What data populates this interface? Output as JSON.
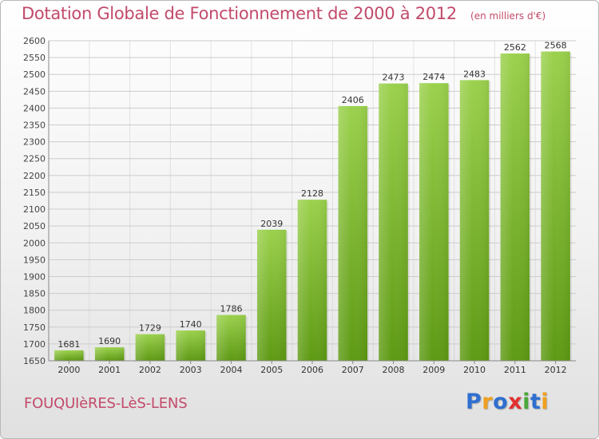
{
  "chart_data": {
    "type": "bar",
    "title": "Dotation Globale de Fonctionnement de 2000 à 2012",
    "subtitle": "(en milliers d'€)",
    "categories": [
      "2000",
      "2001",
      "2002",
      "2003",
      "2004",
      "2005",
      "2006",
      "2007",
      "2008",
      "2009",
      "2010",
      "2011",
      "2012"
    ],
    "values": [
      1681,
      1690,
      1729,
      1740,
      1786,
      2039,
      2128,
      2406,
      2473,
      2474,
      2483,
      2562,
      2568
    ],
    "ylim": [
      1650,
      2600
    ],
    "yticks": [
      1650,
      1700,
      1750,
      1800,
      1850,
      1900,
      1950,
      2000,
      2050,
      2100,
      2150,
      2200,
      2250,
      2300,
      2350,
      2400,
      2450,
      2500,
      2550,
      2600
    ],
    "grid": true,
    "data_labels": true,
    "colors": {
      "bar_top": "#9bd14d",
      "bar_bottom": "#5e9a14",
      "grid": "#cccccc",
      "accent": "#c24a6a"
    }
  },
  "footer": {
    "commune": "FOUQUIèRES-LèS-LENS",
    "logo_letters": [
      "P",
      "r",
      "o",
      "x",
      "i",
      "t",
      "i"
    ],
    "logo_colors": [
      "#2f6fd0",
      "#f0a020",
      "#2f6fd0",
      "#e23030",
      "#4aa83a",
      "#2f6fd0",
      "#f0a020"
    ]
  }
}
